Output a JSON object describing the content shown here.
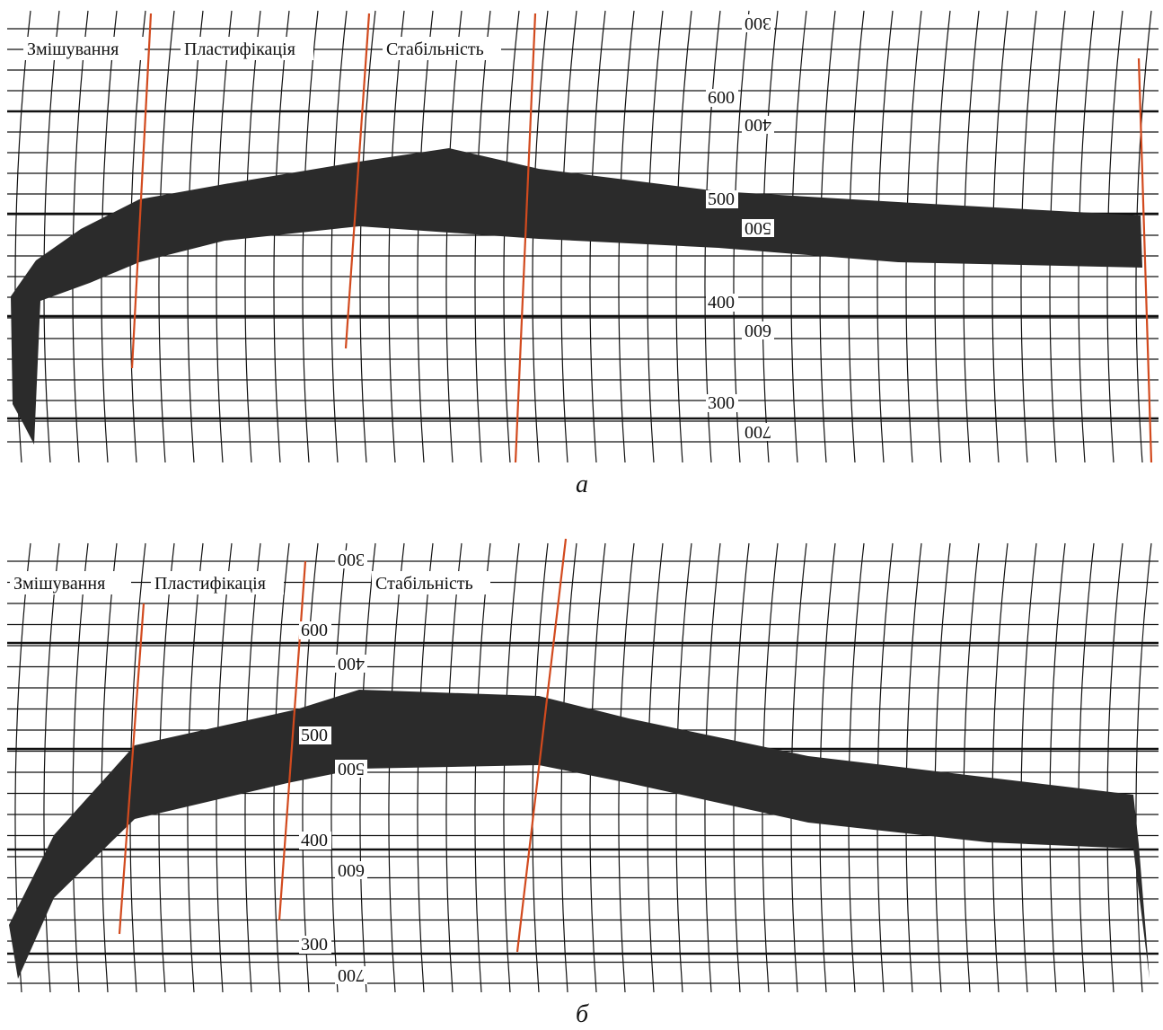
{
  "panels": [
    {
      "phases": [
        "Змішування",
        "Пластифікація",
        "Стабільність"
      ],
      "scale_left": [
        600,
        500,
        400,
        300
      ],
      "scale_right": [
        300,
        400,
        500,
        600,
        700
      ],
      "caption": "а"
    },
    {
      "phases": [
        "Змішування",
        "Пластифікація",
        "Стабільність"
      ],
      "scale_left": [
        600,
        500,
        400,
        300
      ],
      "scale_right": [
        300,
        400,
        500,
        600,
        700
      ],
      "caption": "б"
    }
  ]
}
